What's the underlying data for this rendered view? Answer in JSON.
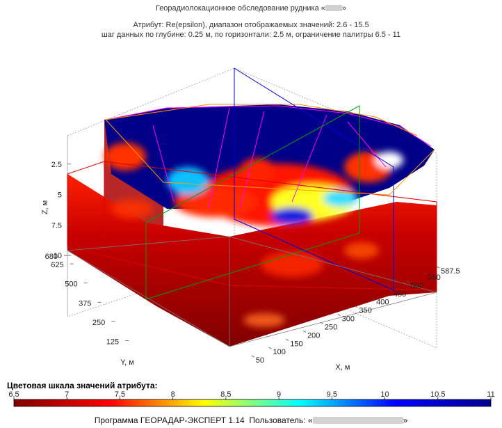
{
  "header": {
    "main_title_prefix": "Георадиолокационное обследование рудника «",
    "main_title_suffix": "»",
    "attribute_line": "Атрибут: Re(epsilon), диапазон отображаемых значений: 2.6 - 15.5",
    "step_line": "шаг данных по глубине: 0.25 м, по горизонтали: 2.5 м, ограничение палитры 6.5 - 11"
  },
  "chart_data": {
    "type": "heatmap",
    "projection": "3d-volume",
    "axes": {
      "z": {
        "label": "Z, м",
        "ticks": [
          "2.5",
          "5",
          "7.5",
          "10"
        ],
        "range": [
          0,
          10
        ],
        "reversed": true
      },
      "y": {
        "label": "Y, м",
        "ticks": [
          "125",
          "250",
          "375",
          "500",
          "625",
          "680"
        ],
        "range": [
          0,
          680
        ]
      },
      "x": {
        "label": "X, м",
        "ticks": [
          "50",
          "100",
          "150",
          "200",
          "250",
          "300",
          "350",
          "400",
          "450",
          "500",
          "550",
          "587.5"
        ],
        "range": [
          0,
          587.5
        ]
      }
    },
    "grid": true,
    "colorbar": {
      "label": "Цветовая шкала значений атрибута:",
      "ticks": [
        "6.5",
        "7",
        "7.5",
        "8",
        "8.5",
        "9",
        "9.5",
        "10",
        "10.5",
        "11"
      ],
      "range": [
        6.5,
        11
      ],
      "colormap": [
        "#7f0000",
        "#ff0000",
        "#ffff00",
        "#00ffff",
        "#0000ff",
        "#00008f"
      ]
    }
  },
  "footer": {
    "program": "Программа ГЕОРАДАР-ЭКСПЕРТ 1.14",
    "user_label": "Пользователь: «",
    "user_suffix": "»"
  }
}
